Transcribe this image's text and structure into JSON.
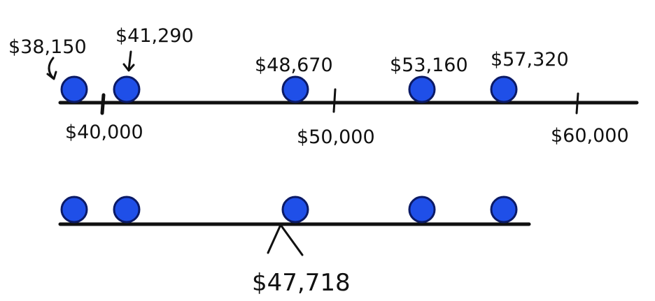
{
  "colors": {
    "ink": "#111111",
    "dot_fill": "#1f4fe8",
    "dot_stroke": "#0b1a66",
    "background": "#ffffff"
  },
  "top_line": {
    "points": [
      {
        "value": 38150,
        "label": "$38,150"
      },
      {
        "value": 41290,
        "label": "$41,290"
      },
      {
        "value": 48670,
        "label": "$48,670"
      },
      {
        "value": 53160,
        "label": "$53,160"
      },
      {
        "value": 57320,
        "label": "$57,320"
      }
    ],
    "ticks": [
      {
        "value": 40000,
        "label": "$40,000"
      },
      {
        "value": 50000,
        "label": "$50,000"
      },
      {
        "value": 60000,
        "label": "$60,000"
      }
    ]
  },
  "bottom_line": {
    "points": [
      38150,
      41290,
      48670,
      53160,
      57320
    ],
    "fulcrum": {
      "value": 47718,
      "label": "$47,718"
    }
  }
}
